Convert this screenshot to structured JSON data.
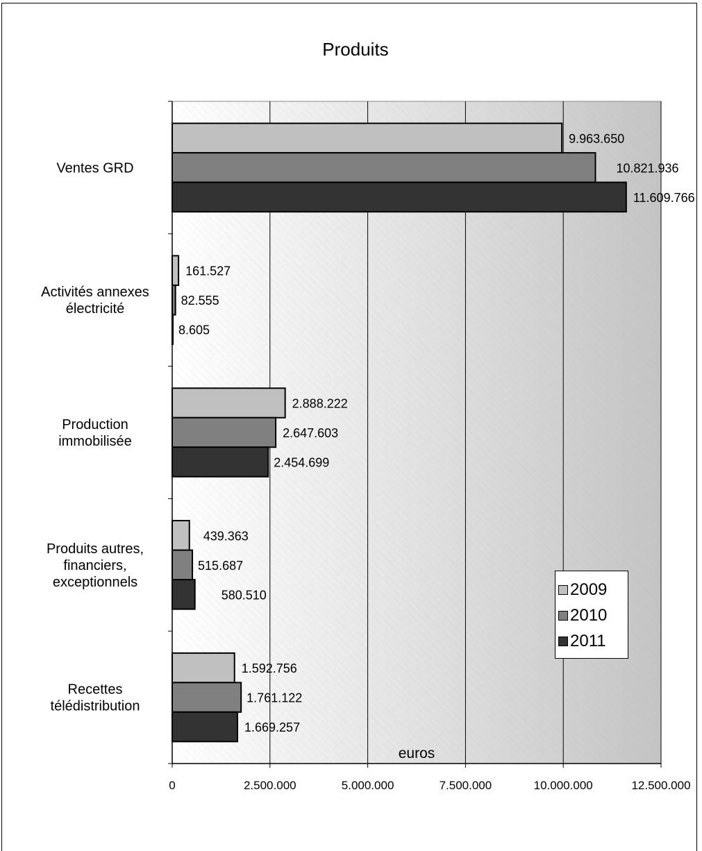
{
  "chart_data": {
    "type": "bar",
    "orientation": "horizontal",
    "title": "Produits",
    "xlabel": "euros",
    "ylabel": "",
    "xlim": [
      0,
      12500000
    ],
    "x_ticks": [
      0,
      2500000,
      5000000,
      7500000,
      10000000,
      12500000
    ],
    "x_tick_labels": [
      "0",
      "2.500.000",
      "5.000.000",
      "7.500.000",
      "10.000.000",
      "12.500.000"
    ],
    "grid": true,
    "legend_position": "right",
    "categories": [
      [
        "Ventes GRD"
      ],
      [
        "Activités annexes",
        "électricité"
      ],
      [
        "Production",
        "immobilisée"
      ],
      [
        "Produits autres,",
        "financiers,",
        "exceptionnels"
      ],
      [
        "Recettes",
        "télédistribution"
      ]
    ],
    "series": [
      {
        "name": "2009",
        "color": "#c0c0c0",
        "values": [
          9963650,
          161527,
          2888222,
          439363,
          1592756
        ],
        "labels": [
          "9.963.650",
          "161.527",
          "2.888.222",
          "439.363",
          "1.592.756"
        ]
      },
      {
        "name": "2010",
        "color": "#808080",
        "values": [
          10821936,
          82555,
          2647603,
          515687,
          1761122
        ],
        "labels": [
          "10.821.936",
          "82.555",
          "2.647.603",
          "515.687",
          "1.761.122"
        ]
      },
      {
        "name": "2011",
        "color": "#333333",
        "values": [
          11609766,
          8605,
          2454699,
          580510,
          1669257
        ],
        "labels": [
          "11.609.766",
          "8.605",
          "2.454.699",
          "580.510",
          "1.669.257"
        ]
      }
    ]
  }
}
